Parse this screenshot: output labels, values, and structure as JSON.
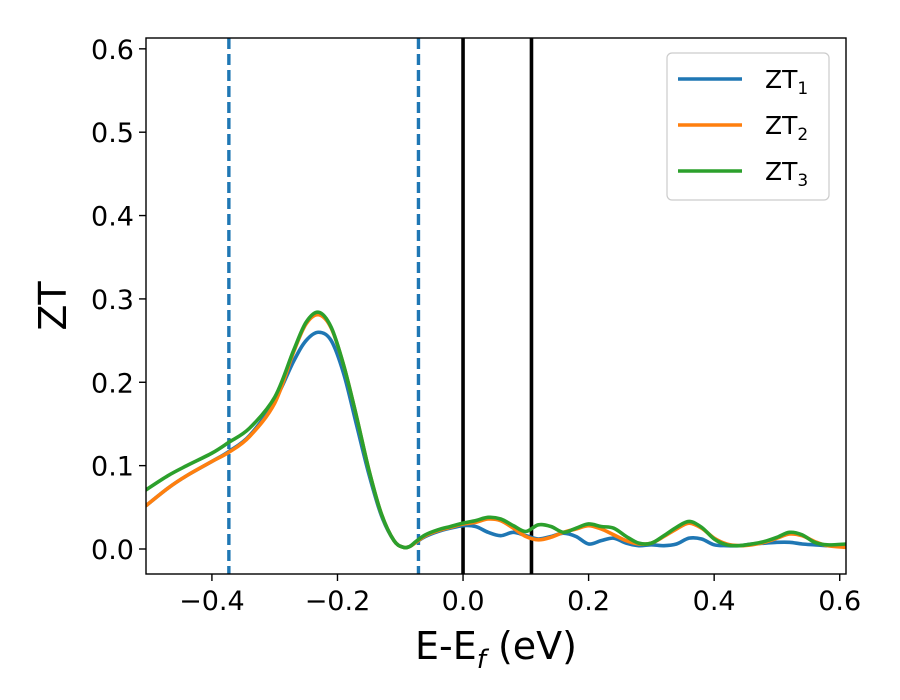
{
  "chart_data": {
    "type": "line",
    "xlabel": "E-E",
    "xlabel_sub": "f",
    "xlabel_unit": " (eV)",
    "ylabel": "ZT",
    "xlim": [
      -0.505,
      0.61
    ],
    "ylim": [
      -0.03,
      0.613
    ],
    "xticks": [
      -0.4,
      -0.2,
      0.0,
      0.2,
      0.4,
      0.6
    ],
    "xtick_labels": [
      "−0.4",
      "−0.2",
      "0.0",
      "0.2",
      "0.4",
      "0.6"
    ],
    "yticks": [
      0.0,
      0.1,
      0.2,
      0.3,
      0.4,
      0.5,
      0.6
    ],
    "ytick_labels": [
      "0.0",
      "0.1",
      "0.2",
      "0.3",
      "0.4",
      "0.5",
      "0.6"
    ],
    "grid": false,
    "legend_position": "top-right",
    "vlines": [
      {
        "x": -0.373,
        "style": "dashed",
        "color": "#1f77b4"
      },
      {
        "x": -0.071,
        "style": "dashed",
        "color": "#1f77b4"
      },
      {
        "x": 0.0,
        "style": "solid",
        "color": "#000000"
      },
      {
        "x": 0.109,
        "style": "solid",
        "color": "#000000"
      }
    ],
    "series": [
      {
        "name": "ZT",
        "name_sub": "1",
        "color": "#1f77b4",
        "x": [
          -0.505,
          -0.47,
          -0.44,
          -0.4,
          -0.373,
          -0.34,
          -0.3,
          -0.27,
          -0.25,
          -0.23,
          -0.21,
          -0.19,
          -0.17,
          -0.15,
          -0.13,
          -0.11,
          -0.095,
          -0.085,
          -0.075,
          -0.06,
          -0.04,
          -0.02,
          0.0,
          0.02,
          0.04,
          0.06,
          0.08,
          0.1,
          0.12,
          0.14,
          0.16,
          0.18,
          0.2,
          0.22,
          0.24,
          0.26,
          0.28,
          0.3,
          0.32,
          0.34,
          0.36,
          0.38,
          0.4,
          0.42,
          0.44,
          0.46,
          0.48,
          0.5,
          0.52,
          0.54,
          0.56,
          0.58,
          0.61
        ],
        "y": [
          0.052,
          0.073,
          0.088,
          0.105,
          0.117,
          0.136,
          0.178,
          0.225,
          0.25,
          0.26,
          0.25,
          0.21,
          0.15,
          0.09,
          0.04,
          0.01,
          0.002,
          0.003,
          0.008,
          0.015,
          0.021,
          0.025,
          0.028,
          0.027,
          0.02,
          0.016,
          0.02,
          0.016,
          0.012,
          0.015,
          0.019,
          0.015,
          0.006,
          0.01,
          0.013,
          0.007,
          0.004,
          0.005,
          0.004,
          0.006,
          0.013,
          0.012,
          0.005,
          0.004,
          0.004,
          0.006,
          0.007,
          0.008,
          0.008,
          0.006,
          0.005,
          0.004,
          0.004
        ]
      },
      {
        "name": "ZT",
        "name_sub": "2",
        "color": "#ff7f0e",
        "x": [
          -0.505,
          -0.47,
          -0.44,
          -0.4,
          -0.373,
          -0.34,
          -0.3,
          -0.27,
          -0.25,
          -0.23,
          -0.21,
          -0.19,
          -0.17,
          -0.15,
          -0.13,
          -0.11,
          -0.095,
          -0.085,
          -0.075,
          -0.06,
          -0.04,
          -0.02,
          0.0,
          0.02,
          0.04,
          0.06,
          0.08,
          0.1,
          0.12,
          0.14,
          0.16,
          0.18,
          0.2,
          0.22,
          0.24,
          0.26,
          0.28,
          0.3,
          0.32,
          0.34,
          0.36,
          0.38,
          0.4,
          0.42,
          0.44,
          0.46,
          0.48,
          0.5,
          0.52,
          0.54,
          0.56,
          0.58,
          0.61
        ],
        "y": [
          0.052,
          0.073,
          0.088,
          0.105,
          0.116,
          0.135,
          0.175,
          0.236,
          0.27,
          0.281,
          0.265,
          0.22,
          0.16,
          0.095,
          0.042,
          0.01,
          0.002,
          0.003,
          0.008,
          0.016,
          0.022,
          0.026,
          0.03,
          0.032,
          0.036,
          0.034,
          0.025,
          0.015,
          0.011,
          0.014,
          0.02,
          0.024,
          0.028,
          0.024,
          0.017,
          0.01,
          0.006,
          0.007,
          0.015,
          0.024,
          0.031,
          0.025,
          0.013,
          0.006,
          0.004,
          0.005,
          0.008,
          0.013,
          0.018,
          0.016,
          0.009,
          0.004,
          0.002
        ]
      },
      {
        "name": "ZT",
        "name_sub": "3",
        "color": "#2ca02c",
        "x": [
          -0.505,
          -0.47,
          -0.44,
          -0.4,
          -0.373,
          -0.34,
          -0.3,
          -0.27,
          -0.25,
          -0.23,
          -0.21,
          -0.19,
          -0.17,
          -0.15,
          -0.13,
          -0.11,
          -0.095,
          -0.085,
          -0.075,
          -0.06,
          -0.04,
          -0.02,
          0.0,
          0.02,
          0.04,
          0.06,
          0.08,
          0.1,
          0.12,
          0.14,
          0.16,
          0.18,
          0.2,
          0.22,
          0.24,
          0.26,
          0.28,
          0.3,
          0.32,
          0.34,
          0.36,
          0.38,
          0.4,
          0.42,
          0.44,
          0.46,
          0.48,
          0.5,
          0.52,
          0.54,
          0.56,
          0.58,
          0.61
        ],
        "y": [
          0.071,
          0.088,
          0.1,
          0.115,
          0.128,
          0.145,
          0.182,
          0.238,
          0.272,
          0.284,
          0.266,
          0.22,
          0.16,
          0.095,
          0.042,
          0.01,
          0.002,
          0.003,
          0.009,
          0.017,
          0.023,
          0.027,
          0.031,
          0.034,
          0.038,
          0.036,
          0.028,
          0.021,
          0.029,
          0.027,
          0.02,
          0.025,
          0.03,
          0.027,
          0.025,
          0.015,
          0.007,
          0.007,
          0.016,
          0.026,
          0.033,
          0.026,
          0.012,
          0.005,
          0.004,
          0.006,
          0.009,
          0.014,
          0.02,
          0.017,
          0.008,
          0.005,
          0.006
        ]
      }
    ]
  }
}
